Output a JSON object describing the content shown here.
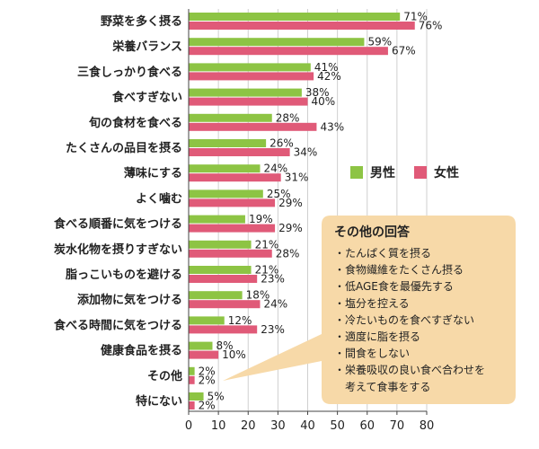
{
  "colors": {
    "male": "#8dc444",
    "female": "#e05a78",
    "note_bg": "#f7d9a8"
  },
  "chart_data": {
    "type": "bar",
    "orientation": "horizontal",
    "categories": [
      "野菜を多く摂る",
      "栄養バランス",
      "三食しっかり食べる",
      "食べすぎない",
      "旬の食材を食べる",
      "たくさんの品目を摂る",
      "薄味にする",
      "よく噛む",
      "食べる順番に気をつける",
      "炭水化物を摂りすぎない",
      "脂っこいものを避ける",
      "添加物に気をつける",
      "食べる時間に気をつける",
      "健康食品を摂る",
      "その他",
      "特にない"
    ],
    "series": [
      {
        "name": "男性",
        "values": [
          71,
          59,
          41,
          38,
          28,
          26,
          24,
          25,
          19,
          21,
          21,
          18,
          12,
          8,
          2,
          5
        ]
      },
      {
        "name": "女性",
        "values": [
          76,
          67,
          42,
          40,
          43,
          34,
          31,
          29,
          29,
          28,
          23,
          24,
          23,
          10,
          2,
          2
        ]
      }
    ],
    "value_suffix": "%",
    "xlim": [
      0,
      80
    ],
    "xticks": [
      "0",
      "10",
      "20",
      "30",
      "40",
      "50",
      "60",
      "70",
      "80"
    ],
    "grid": "vertical",
    "legend": "right",
    "legend_labels": [
      "男性",
      "女性"
    ]
  },
  "note": {
    "title": "その他の回答",
    "items": [
      "・たんぱく質を摂る",
      "・食物繊維をたくさん摂る",
      "・低AGE食を最優先する",
      "・塩分を控える",
      "・冷たいものを食べすぎない",
      "・適度に脂を摂る",
      "・間食をしない",
      "・栄養吸収の良い食べ合わせを",
      "　考えて食事をする"
    ]
  }
}
